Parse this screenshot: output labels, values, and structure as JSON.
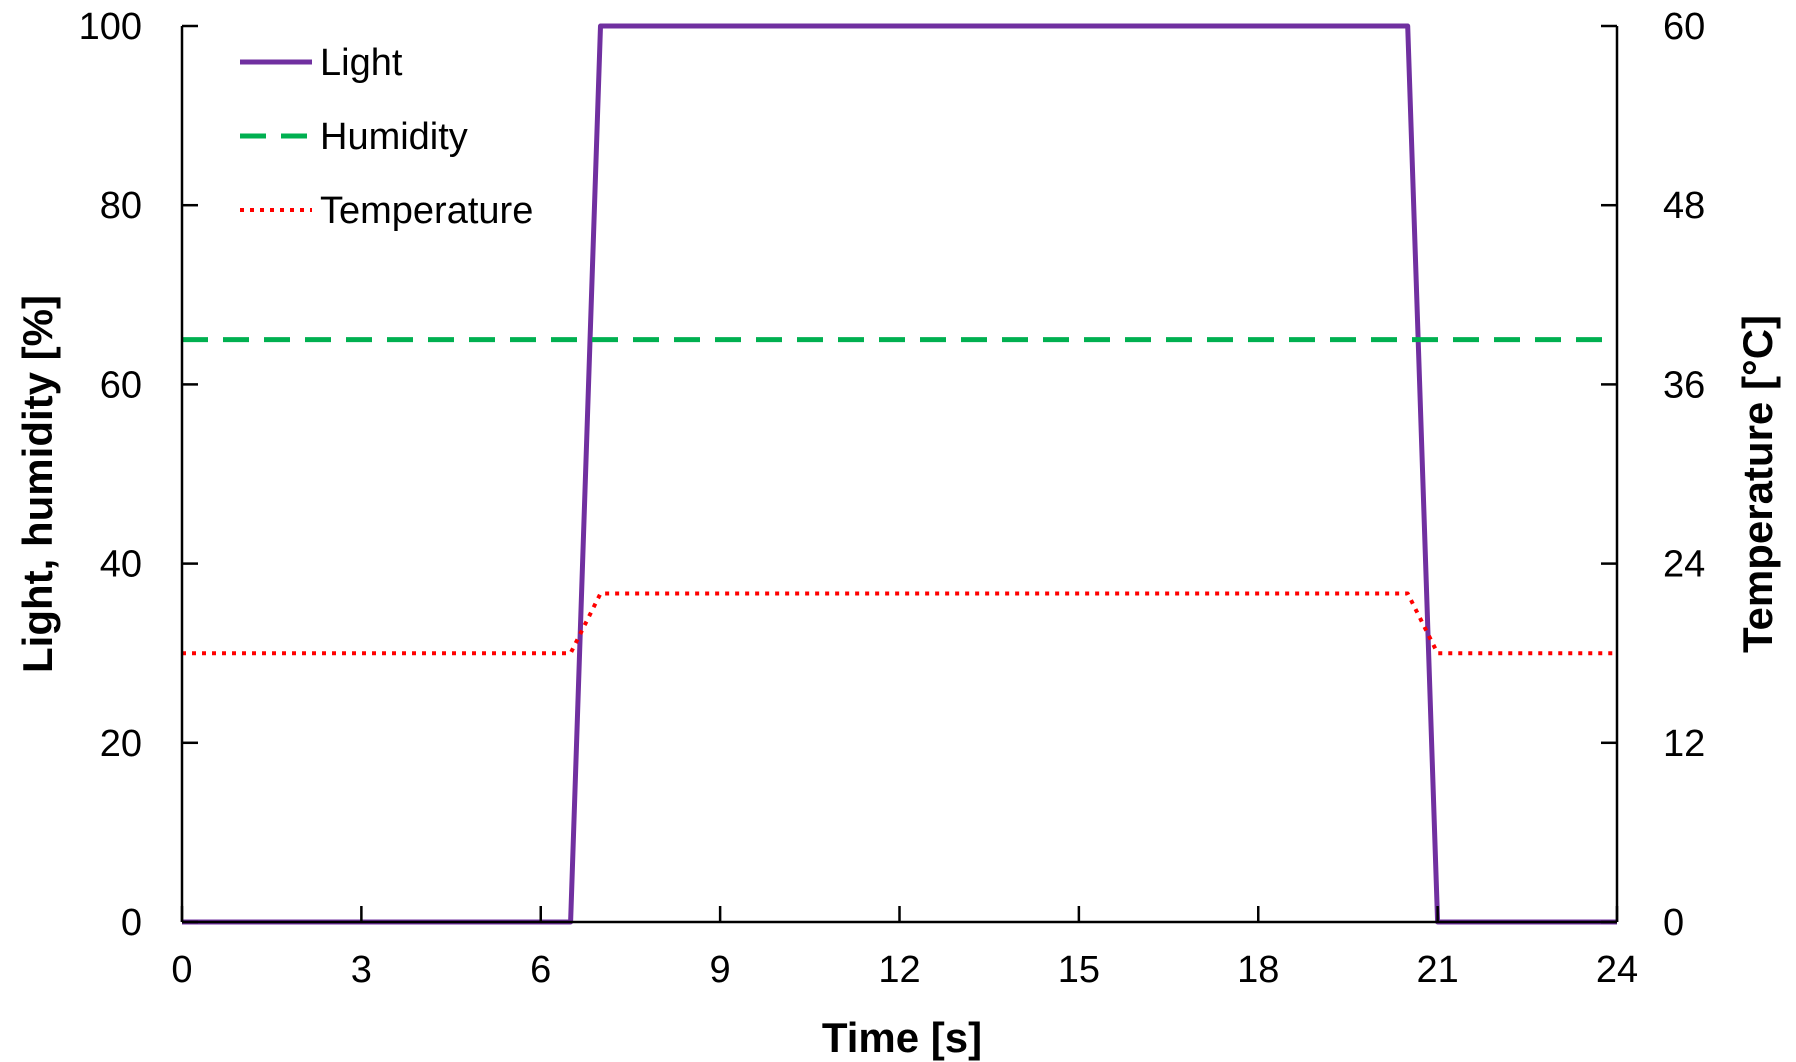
{
  "chart_data": {
    "type": "line",
    "title": "",
    "xlabel": "Time [s]",
    "ylabel": "Light, humidity [%]",
    "y2label": "Temperature [°C]",
    "xlim": [
      0,
      24
    ],
    "ylim": [
      0,
      100
    ],
    "y2lim": [
      0,
      60
    ],
    "xticks": [
      0,
      3,
      6,
      9,
      12,
      15,
      18,
      21,
      24
    ],
    "yticks": [
      0,
      20,
      40,
      60,
      80,
      100
    ],
    "y2ticks": [
      0,
      12,
      24,
      36,
      48,
      60
    ],
    "grid": false,
    "legend_position": "top-left",
    "series": [
      {
        "name": "Light",
        "axis": "left",
        "style": "solid",
        "color": "#7030a0",
        "x": [
          0,
          6.5,
          7.0,
          20.5,
          21.0,
          24
        ],
        "y": [
          0,
          0,
          100,
          100,
          0,
          0
        ]
      },
      {
        "name": "Humidity",
        "axis": "left",
        "style": "dashed",
        "color": "#00b050",
        "x": [
          0,
          24
        ],
        "y": [
          65,
          65
        ]
      },
      {
        "name": "Temperature",
        "axis": "right",
        "style": "dotted",
        "color": "#ff0000",
        "x": [
          0,
          6.5,
          7.0,
          20.5,
          21.0,
          24
        ],
        "y": [
          18,
          18,
          22,
          22,
          18,
          18
        ]
      }
    ]
  }
}
